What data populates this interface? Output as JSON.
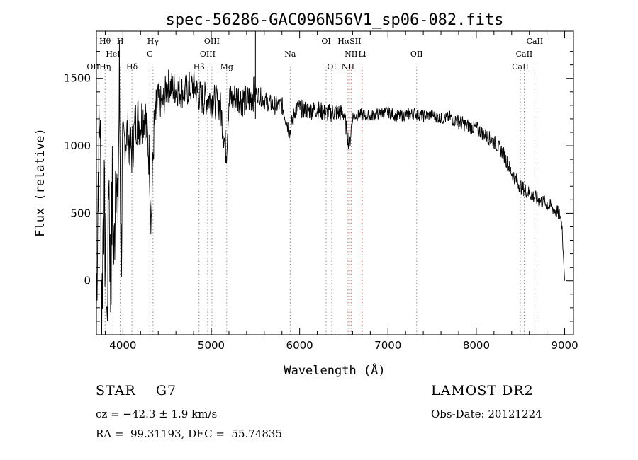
{
  "chart_data": {
    "type": "line",
    "title": "spec-56286-GAC096N56V1_sp06-082.fits",
    "xlabel": "Wavelength (Å)",
    "ylabel": "Flux (relative)",
    "xlim": [
      3700,
      9100
    ],
    "ylim": [
      -400,
      1850
    ],
    "xticks": [
      4000,
      5000,
      6000,
      7000,
      8000,
      9000
    ],
    "yticks": [
      0,
      500,
      1000,
      1500
    ],
    "grid": false,
    "series": [
      {
        "x": [
          3700,
          3720,
          3740,
          3760,
          3780,
          3800,
          3820,
          3840,
          3860,
          3880,
          3900,
          3920,
          3940,
          3960,
          3980,
          4000,
          4050,
          4100,
          4150,
          4200,
          4250,
          4300,
          4320,
          4350,
          4400,
          4450,
          4500,
          4600,
          4700,
          4800,
          4850,
          4900,
          5000,
          5100,
          5170,
          5200,
          5300,
          5400,
          5500,
          5600,
          5700,
          5800,
          5890,
          5950,
          6000,
          6100,
          6200,
          6300,
          6400,
          6500,
          6563,
          6600,
          6700,
          6800,
          6900,
          7000,
          7100,
          7200,
          7300,
          7400,
          7500,
          7600,
          7700,
          7800,
          7900,
          8000,
          8100,
          8200,
          8300,
          8400,
          8500,
          8600,
          8700,
          8800,
          8900,
          8950,
          8970,
          8985,
          9000
        ],
        "y": [
          -200,
          800,
          1250,
          -300,
          700,
          200,
          -350,
          900,
          -100,
          650,
          100,
          1050,
          350,
          1480,
          200,
          1000,
          1100,
          950,
          1200,
          1180,
          1250,
          900,
          440,
          1100,
          1350,
          1300,
          1450,
          1420,
          1400,
          1450,
          1380,
          1350,
          1350,
          1300,
          950,
          1340,
          1360,
          1330,
          1400,
          1340,
          1300,
          1300,
          1100,
          1270,
          1280,
          1260,
          1270,
          1240,
          1250,
          1240,
          1000,
          1220,
          1230,
          1220,
          1240,
          1250,
          1220,
          1230,
          1240,
          1220,
          1230,
          1200,
          1210,
          1180,
          1150,
          1130,
          1080,
          1030,
          950,
          800,
          700,
          650,
          600,
          570,
          520,
          480,
          420,
          200,
          0
        ]
      }
    ],
    "lines": [
      {
        "label": "Hθ",
        "x": 3798,
        "row": 0
      },
      {
        "label": "H",
        "x": 3970,
        "row": 0
      },
      {
        "label": "Hγ",
        "x": 4341,
        "row": 0
      },
      {
        "label": "OIII",
        "x": 5007,
        "row": 0
      },
      {
        "label": "OI",
        "x": 6300,
        "row": 0
      },
      {
        "label": "HαSII",
        "x": 6563,
        "row": 0
      },
      {
        "label": "CaII",
        "x": 8662,
        "row": 0
      },
      {
        "label": "HeI",
        "x": 3889,
        "row": 1
      },
      {
        "label": "G",
        "x": 4305,
        "row": 1
      },
      {
        "label": "OIII",
        "x": 4959,
        "row": 1
      },
      {
        "label": "Na",
        "x": 5893,
        "row": 1
      },
      {
        "label": "NII",
        "x": 6583,
        "row": 1
      },
      {
        "label": "Li",
        "x": 6708,
        "row": 1
      },
      {
        "label": "OII",
        "x": 7325,
        "row": 1
      },
      {
        "label": "CaII",
        "x": 8542,
        "row": 1
      },
      {
        "label": "OIIHη",
        "x": 3727,
        "row": 2
      },
      {
        "label": "Hδ",
        "x": 4102,
        "row": 2
      },
      {
        "label": "Hβ",
        "x": 4861,
        "row": 2
      },
      {
        "label": "Mg",
        "x": 5175,
        "row": 2
      },
      {
        "label": "OI",
        "x": 6364,
        "row": 2
      },
      {
        "label": "NII",
        "x": 6548,
        "row": 2
      },
      {
        "label": "CaII",
        "x": 8498,
        "row": 2
      }
    ]
  },
  "info": {
    "class": "STAR    G7",
    "survey": "LAMOST DR2",
    "cz": "cz = −42.3 ± 1.9 km/s",
    "obsdate": "Obs-Date: 20121224",
    "radec": "RA =  99.31193, DEC =  55.74835"
  }
}
